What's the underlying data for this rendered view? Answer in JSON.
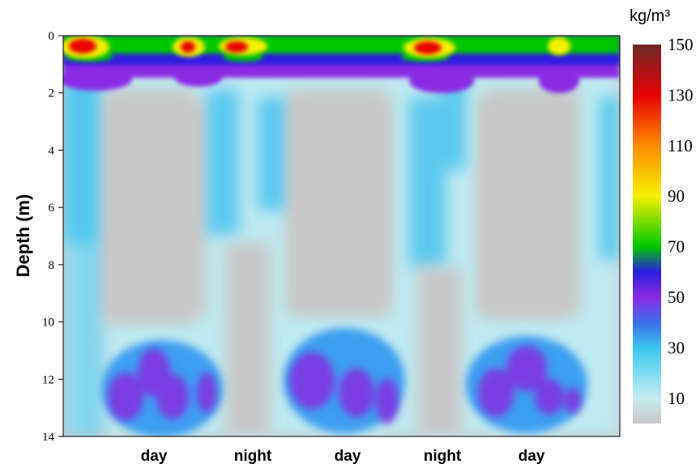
{
  "chart_data": {
    "type": "heatmap",
    "ylabel": "Depth (m)",
    "y_range": [
      0,
      14
    ],
    "y_inverted": true,
    "y_ticks": [
      "0",
      "2",
      "4",
      "6",
      "8",
      "10",
      "12",
      "14"
    ],
    "x_categories": [
      "day",
      "night",
      "day",
      "night",
      "day"
    ],
    "colorbar": {
      "unit": "kg/m³",
      "range": [
        0,
        150
      ],
      "ticks": [
        "150",
        "130",
        "110",
        "90",
        "70",
        "50",
        "30",
        "10"
      ],
      "colors": [
        {
          "value": 0,
          "color": "#c8c8c8"
        },
        {
          "value": 10,
          "color": "#c8ecf0"
        },
        {
          "value": 22,
          "color": "#6fd9f0"
        },
        {
          "value": 30,
          "color": "#3cc3f0"
        },
        {
          "value": 40,
          "color": "#3c6ee6"
        },
        {
          "value": 50,
          "color": "#8a2be2"
        },
        {
          "value": 60,
          "color": "#2a1ee0"
        },
        {
          "value": 70,
          "color": "#00c800"
        },
        {
          "value": 90,
          "color": "#f5f000"
        },
        {
          "value": 110,
          "color": "#ff8c00"
        },
        {
          "value": 130,
          "color": "#e60000"
        },
        {
          "value": 150,
          "color": "#6e2a2a"
        }
      ]
    },
    "grid": false,
    "legend": "right"
  }
}
